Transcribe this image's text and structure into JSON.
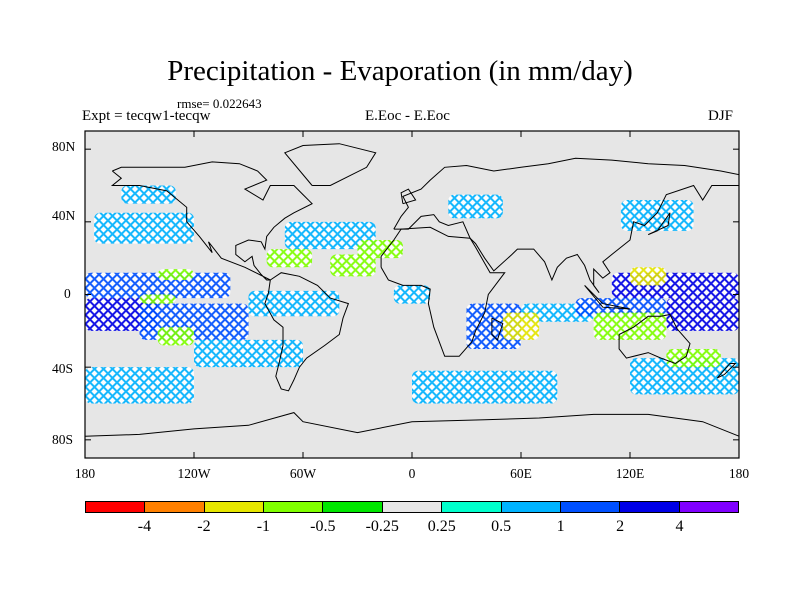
{
  "chart_data": {
    "type": "heatmap",
    "title": "Precipitation - Evaporation (in mm/day)",
    "stat": "rmse= 0.022643",
    "experiment": "Expt = tecqw1-tecqw",
    "region": "E.Eoc - E.Eoc",
    "season": "DJF",
    "x_ticks": [
      "180",
      "120W",
      "60W",
      "0",
      "60E",
      "120E",
      "180"
    ],
    "x_tick_values": [
      -180,
      -120,
      -60,
      0,
      60,
      120,
      180
    ],
    "y_ticks": [
      "80N",
      "40N",
      "0",
      "40S",
      "80S"
    ],
    "y_tick_values": [
      80,
      40,
      0,
      -40,
      -80
    ],
    "xlim": [
      -180,
      180
    ],
    "ylim": [
      -90,
      90
    ],
    "colorbar": {
      "labels": [
        "-4",
        "-2",
        "-1",
        "-0.5",
        "-0.25",
        "0.25",
        "0.5",
        "1",
        "2",
        "4"
      ],
      "colors": [
        "#ff0000",
        "#ff8000",
        "#e6e600",
        "#80ff00",
        "#00e600",
        "#e6e6e6",
        "#00ffcc",
        "#00b3ff",
        "#0050ff",
        "#0000e6",
        "#8000ff"
      ]
    },
    "background_color": "#e6e6e6",
    "regions": [
      {
        "lon": [
          -180,
          -100
        ],
        "lat": [
          -2,
          12
        ],
        "level": "1"
      },
      {
        "lon": [
          -180,
          -140
        ],
        "lat": [
          -20,
          -2
        ],
        "level": "2"
      },
      {
        "lon": [
          -150,
          -90
        ],
        "lat": [
          -25,
          -5
        ],
        "level": "1"
      },
      {
        "lon": [
          -175,
          -120
        ],
        "lat": [
          28,
          45
        ],
        "level": "0.5"
      },
      {
        "lon": [
          -70,
          -20
        ],
        "lat": [
          25,
          40
        ],
        "level": "0.5"
      },
      {
        "lon": [
          -120,
          -60
        ],
        "lat": [
          -40,
          -25
        ],
        "level": "0.5"
      },
      {
        "lon": [
          -90,
          -40
        ],
        "lat": [
          -12,
          2
        ],
        "level": "0.5"
      },
      {
        "lon": [
          -10,
          10
        ],
        "lat": [
          -5,
          5
        ],
        "level": "0.5"
      },
      {
        "lon": [
          30,
          60
        ],
        "lat": [
          -30,
          -5
        ],
        "level": "1"
      },
      {
        "lon": [
          60,
          100
        ],
        "lat": [
          -15,
          -5
        ],
        "level": "0.5"
      },
      {
        "lon": [
          110,
          180
        ],
        "lat": [
          -2,
          12
        ],
        "level": "2"
      },
      {
        "lon": [
          140,
          180
        ],
        "lat": [
          -20,
          -2
        ],
        "level": "2"
      },
      {
        "lon": [
          90,
          140
        ],
        "lat": [
          -12,
          -2
        ],
        "level": "1"
      },
      {
        "lon": [
          -180,
          -120
        ],
        "lat": [
          -60,
          -40
        ],
        "level": "0.5"
      },
      {
        "lon": [
          0,
          80
        ],
        "lat": [
          -60,
          -42
        ],
        "level": "0.5"
      },
      {
        "lon": [
          120,
          180
        ],
        "lat": [
          -55,
          -35
        ],
        "level": "0.5"
      },
      {
        "lon": [
          20,
          50
        ],
        "lat": [
          42,
          55
        ],
        "level": "0.5"
      },
      {
        "lon": [
          115,
          155
        ],
        "lat": [
          35,
          52
        ],
        "level": "0.5"
      },
      {
        "lon": [
          -160,
          -130
        ],
        "lat": [
          50,
          60
        ],
        "level": "0.5"
      },
      {
        "lon": [
          -140,
          -120
        ],
        "lat": [
          8,
          14
        ],
        "level": "-0.5"
      },
      {
        "lon": [
          -80,
          -55
        ],
        "lat": [
          15,
          25
        ],
        "level": "-0.5"
      },
      {
        "lon": [
          -45,
          -20
        ],
        "lat": [
          10,
          22
        ],
        "level": "-0.5"
      },
      {
        "lon": [
          -30,
          -5
        ],
        "lat": [
          20,
          30
        ],
        "level": "-0.5"
      },
      {
        "lon": [
          50,
          70
        ],
        "lat": [
          -25,
          -10
        ],
        "level": "-1"
      },
      {
        "lon": [
          100,
          140
        ],
        "lat": [
          -25,
          -10
        ],
        "level": "-0.5"
      },
      {
        "lon": [
          120,
          140
        ],
        "lat": [
          5,
          15
        ],
        "level": "-1"
      },
      {
        "lon": [
          -140,
          -120
        ],
        "lat": [
          -28,
          -18
        ],
        "level": "-0.5"
      },
      {
        "lon": [
          140,
          170
        ],
        "lat": [
          -40,
          -30
        ],
        "level": "-0.5"
      },
      {
        "lon": [
          -150,
          -130
        ],
        "lat": [
          -5,
          0
        ],
        "level": "-0.5"
      }
    ]
  }
}
